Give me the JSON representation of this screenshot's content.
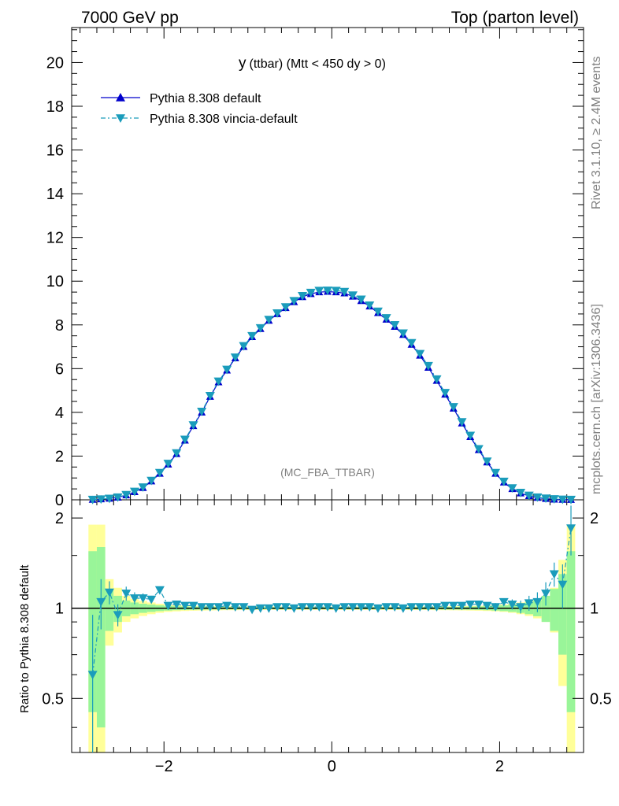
{
  "header": {
    "left": "7000 GeV pp",
    "right": "Top (parton level)"
  },
  "side_labels": {
    "rivet": "Rivet 3.1.10, ≥ 2.4M events",
    "mcplots": "mcplots.cern.ch [arXiv:1306.3436]"
  },
  "plot_title": {
    "main": "y",
    "rest": "(ttbar) (Mtt < 450 dy > 0)"
  },
  "analysis_tag": "(MC_FBA_TTBAR)",
  "ratio_ylabel": "Ratio to Pythia 8.308 default",
  "colors": {
    "default": "#0000cc",
    "vincia": "#1a9cbb",
    "band_inner": "#99f599",
    "band_outer": "#ffff99"
  },
  "chart_data": {
    "type": "line",
    "x": [
      -2.85,
      -2.75,
      -2.65,
      -2.55,
      -2.45,
      -2.35,
      -2.25,
      -2.15,
      -2.05,
      -1.95,
      -1.85,
      -1.75,
      -1.65,
      -1.55,
      -1.45,
      -1.35,
      -1.25,
      -1.15,
      -1.05,
      -0.95,
      -0.85,
      -0.75,
      -0.65,
      -0.55,
      -0.45,
      -0.35,
      -0.25,
      -0.15,
      -0.05,
      0.05,
      0.15,
      0.25,
      0.35,
      0.45,
      0.55,
      0.65,
      0.75,
      0.85,
      0.95,
      1.05,
      1.15,
      1.25,
      1.35,
      1.45,
      1.55,
      1.65,
      1.75,
      1.85,
      1.95,
      2.05,
      2.15,
      2.25,
      2.35,
      2.45,
      2.55,
      2.65,
      2.75,
      2.85
    ],
    "xlim": [
      -3.1,
      3.0
    ],
    "main": {
      "ylim": [
        0,
        21.6
      ],
      "yticks": [
        0,
        2,
        4,
        6,
        8,
        10,
        12,
        14,
        16,
        18,
        20
      ],
      "series": [
        {
          "name": "Pythia 8.308 default",
          "values": [
            0.01,
            0.03,
            0.06,
            0.11,
            0.21,
            0.36,
            0.55,
            0.85,
            1.2,
            1.62,
            2.1,
            2.72,
            3.38,
            4.0,
            4.72,
            5.38,
            5.92,
            6.48,
            7.0,
            7.45,
            7.82,
            8.2,
            8.5,
            8.78,
            9.05,
            9.28,
            9.42,
            9.5,
            9.52,
            9.5,
            9.45,
            9.3,
            9.1,
            8.85,
            8.55,
            8.25,
            7.92,
            7.55,
            7.1,
            6.6,
            6.05,
            5.45,
            4.82,
            4.18,
            3.5,
            2.88,
            2.28,
            1.72,
            1.2,
            0.8,
            0.5,
            0.3,
            0.18,
            0.1,
            0.05,
            0.02,
            0.01,
            0.005
          ]
        },
        {
          "name": "Pythia 8.308 vincia-default",
          "values": [
            0.01,
            0.03,
            0.06,
            0.12,
            0.23,
            0.38,
            0.58,
            0.88,
            1.24,
            1.66,
            2.14,
            2.76,
            3.42,
            4.04,
            4.76,
            5.42,
            5.96,
            6.52,
            7.04,
            7.5,
            7.86,
            8.24,
            8.54,
            8.82,
            9.1,
            9.33,
            9.48,
            9.57,
            9.58,
            9.57,
            9.52,
            9.36,
            9.17,
            8.9,
            8.62,
            8.32,
            8.0,
            7.62,
            7.18,
            6.68,
            6.13,
            5.52,
            4.9,
            4.25,
            3.56,
            2.94,
            2.33,
            1.76,
            1.24,
            0.84,
            0.54,
            0.33,
            0.2,
            0.12,
            0.07,
            0.04,
            0.02,
            0.01
          ]
        }
      ]
    },
    "ratio": {
      "ylim": [
        0.33,
        2.3
      ],
      "yticks": [
        0.5,
        1,
        2
      ],
      "xticks": [
        -2,
        0,
        2
      ],
      "band_inner": [
        0.55,
        0.6,
        0.16,
        0.1,
        0.06,
        0.045,
        0.035,
        0.028,
        0.022,
        0.018,
        0.015,
        0.013,
        0.012,
        0.011,
        0.01,
        0.01,
        0.009,
        0.009,
        0.009,
        0.008,
        0.008,
        0.008,
        0.008,
        0.008,
        0.008,
        0.008,
        0.008,
        0.008,
        0.008,
        0.008,
        0.008,
        0.008,
        0.008,
        0.008,
        0.008,
        0.008,
        0.008,
        0.008,
        0.008,
        0.009,
        0.009,
        0.009,
        0.01,
        0.01,
        0.011,
        0.012,
        0.013,
        0.015,
        0.018,
        0.022,
        0.028,
        0.035,
        0.045,
        0.06,
        0.1,
        0.16,
        0.3,
        0.55
      ],
      "band_outer": [
        0.9,
        0.9,
        0.25,
        0.17,
        0.1,
        0.075,
        0.058,
        0.045,
        0.035,
        0.028,
        0.024,
        0.021,
        0.019,
        0.018,
        0.017,
        0.016,
        0.015,
        0.015,
        0.014,
        0.014,
        0.014,
        0.013,
        0.013,
        0.013,
        0.013,
        0.013,
        0.013,
        0.013,
        0.013,
        0.013,
        0.013,
        0.013,
        0.013,
        0.013,
        0.013,
        0.013,
        0.013,
        0.013,
        0.014,
        0.014,
        0.014,
        0.015,
        0.015,
        0.016,
        0.017,
        0.018,
        0.019,
        0.021,
        0.024,
        0.028,
        0.035,
        0.045,
        0.058,
        0.075,
        0.1,
        0.17,
        0.45,
        0.9
      ],
      "vincia_ratio": [
        0.6,
        1.05,
        1.13,
        0.95,
        1.12,
        1.08,
        1.08,
        1.07,
        1.15,
        1.02,
        1.03,
        1.02,
        1.02,
        1.01,
        1.01,
        1.01,
        1.02,
        1.01,
        1.01,
        0.99,
        1.0,
        1.0,
        1.01,
        1.01,
        1.0,
        1.01,
        1.01,
        1.01,
        1.01,
        1.0,
        1.01,
        1.01,
        1.01,
        1.01,
        1.0,
        1.01,
        1.01,
        1.0,
        1.01,
        1.01,
        1.01,
        1.01,
        1.02,
        1.02,
        1.02,
        1.03,
        1.03,
        1.02,
        1.01,
        1.05,
        1.03,
        1.01,
        1.04,
        1.05,
        1.12,
        1.3,
        1.2,
        1.85
      ],
      "vincia_err": [
        0.35,
        0.2,
        0.1,
        0.08,
        0.06,
        0.05,
        0.04,
        0.03,
        0.03,
        0.02,
        0.02,
        0.015,
        0.015,
        0.012,
        0.012,
        0.01,
        0.01,
        0.01,
        0.01,
        0.01,
        0.01,
        0.01,
        0.01,
        0.01,
        0.01,
        0.01,
        0.01,
        0.01,
        0.01,
        0.01,
        0.01,
        0.01,
        0.01,
        0.01,
        0.01,
        0.01,
        0.01,
        0.01,
        0.01,
        0.01,
        0.01,
        0.01,
        0.012,
        0.012,
        0.015,
        0.015,
        0.02,
        0.02,
        0.03,
        0.03,
        0.04,
        0.05,
        0.06,
        0.08,
        0.1,
        0.12,
        0.2,
        0.35
      ]
    }
  }
}
